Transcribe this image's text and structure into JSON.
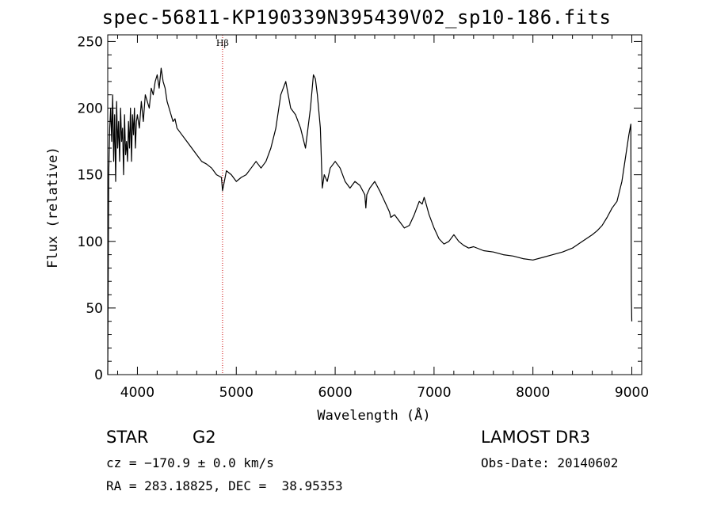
{
  "chart_data": {
    "type": "line",
    "title": "spec-56811-KP190339N395439V02_sp10-186.fits",
    "xlabel": "Wavelength (Å)",
    "ylabel": "Flux (relative)",
    "xlim": [
      3700,
      9100
    ],
    "ylim": [
      0,
      255
    ],
    "xticks": [
      4000,
      5000,
      6000,
      7000,
      8000,
      9000
    ],
    "yticks": [
      0,
      50,
      100,
      150,
      200,
      250
    ],
    "series": [
      {
        "x": [
          3700,
          3710,
          3720,
          3730,
          3740,
          3750,
          3760,
          3770,
          3780,
          3790,
          3800,
          3810,
          3820,
          3830,
          3840,
          3850,
          3860,
          3870,
          3880,
          3890,
          3900,
          3910,
          3920,
          3930,
          3940,
          3950,
          3960,
          3970,
          3980,
          3990,
          4000,
          4020,
          4040,
          4060,
          4080,
          4100,
          4120,
          4140,
          4160,
          4180,
          4200,
          4220,
          4240,
          4260,
          4280,
          4300,
          4320,
          4340,
          4360,
          4380,
          4400,
          4450,
          4500,
          4550,
          4600,
          4650,
          4700,
          4750,
          4800,
          4850,
          4861,
          4900,
          4950,
          5000,
          5050,
          5100,
          5150,
          5200,
          5250,
          5300,
          5350,
          5400,
          5450,
          5500,
          5550,
          5600,
          5650,
          5700,
          5750,
          5780,
          5800,
          5820,
          5850,
          5870,
          5890,
          5920,
          5950,
          6000,
          6050,
          6100,
          6150,
          6200,
          6250,
          6300,
          6310,
          6320,
          6350,
          6400,
          6450,
          6500,
          6550,
          6563,
          6600,
          6650,
          6700,
          6750,
          6800,
          6850,
          6880,
          6900,
          6920,
          6950,
          7000,
          7050,
          7100,
          7150,
          7200,
          7250,
          7300,
          7350,
          7400,
          7500,
          7600,
          7700,
          7800,
          7900,
          8000,
          8100,
          8200,
          8300,
          8400,
          8500,
          8600,
          8650,
          8700,
          8750,
          8800,
          8850,
          8900,
          8950,
          8970,
          8990,
          8995,
          9000
        ],
        "y": [
          0,
          150,
          185,
          200,
          175,
          210,
          160,
          195,
          145,
          205,
          170,
          190,
          160,
          200,
          175,
          185,
          150,
          195,
          165,
          175,
          160,
          190,
          170,
          200,
          160,
          195,
          180,
          200,
          170,
          190,
          195,
          185,
          205,
          190,
          210,
          205,
          200,
          215,
          210,
          220,
          225,
          215,
          230,
          220,
          215,
          205,
          200,
          195,
          190,
          192,
          185,
          180,
          175,
          170,
          165,
          160,
          158,
          155,
          150,
          148,
          138,
          153,
          150,
          145,
          148,
          150,
          155,
          160,
          155,
          160,
          170,
          185,
          210,
          220,
          200,
          195,
          185,
          170,
          200,
          225,
          222,
          210,
          185,
          140,
          150,
          145,
          155,
          160,
          155,
          145,
          140,
          145,
          142,
          135,
          125,
          135,
          140,
          145,
          138,
          130,
          122,
          118,
          120,
          115,
          110,
          112,
          120,
          130,
          128,
          133,
          128,
          120,
          110,
          102,
          98,
          100,
          105,
          100,
          97,
          95,
          96,
          93,
          92,
          90,
          89,
          87,
          86,
          88,
          90,
          92,
          95,
          100,
          105,
          108,
          112,
          118,
          125,
          130,
          145,
          170,
          180,
          188,
          60,
          40
        ],
        "name": ""
      }
    ],
    "lines": [
      {
        "label": "Hβ",
        "x": 4861
      }
    ]
  },
  "info": {
    "class": "STAR",
    "subclass": "G2",
    "cz": "cz = −170.9 ± 0.0 km/s",
    "coords": "RA = 283.18825, DEC =  38.95353",
    "survey": "LAMOST DR3",
    "obsdate": "Obs-Date: 20140602"
  },
  "colors": {
    "axes": "#000000",
    "lines": "#cc0000",
    "spectrum": "#000000"
  }
}
